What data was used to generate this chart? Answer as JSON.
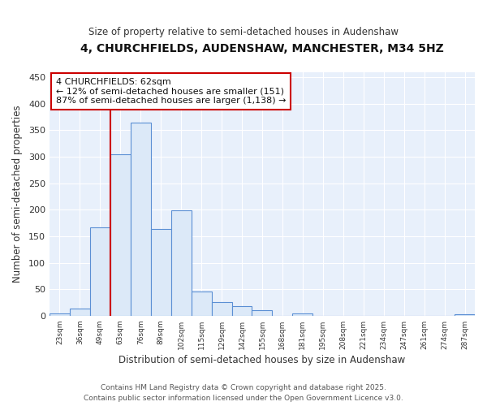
{
  "title": "4, CHURCHFIELDS, AUDENSHAW, MANCHESTER, M34 5HZ",
  "subtitle": "Size of property relative to semi-detached houses in Audenshaw",
  "xlabel": "Distribution of semi-detached houses by size in Audenshaw",
  "ylabel": "Number of semi-detached properties",
  "footer_line1": "Contains HM Land Registry data © Crown copyright and database right 2025.",
  "footer_line2": "Contains public sector information licensed under the Open Government Licence v3.0.",
  "annotation_title": "4 CHURCHFIELDS: 62sqm",
  "annotation_line1": "← 12% of semi-detached houses are smaller (151)",
  "annotation_line2": "87% of semi-detached houses are larger (1,138) →",
  "bar_labels": [
    "23sqm",
    "36sqm",
    "49sqm",
    "63sqm",
    "76sqm",
    "89sqm",
    "102sqm",
    "115sqm",
    "129sqm",
    "142sqm",
    "155sqm",
    "168sqm",
    "181sqm",
    "195sqm",
    "208sqm",
    "221sqm",
    "234sqm",
    "247sqm",
    "261sqm",
    "274sqm",
    "287sqm"
  ],
  "bar_values": [
    5,
    13,
    167,
    305,
    365,
    163,
    199,
    45,
    26,
    18,
    10,
    0,
    4,
    0,
    0,
    0,
    0,
    0,
    0,
    0,
    3
  ],
  "bar_color": "#dce9f8",
  "bar_edge_color": "#5b8fd4",
  "vline_x_idx": 3,
  "vline_color": "#cc0000",
  "bg_color": "#ffffff",
  "plot_bg_color": "#e8f0fb",
  "grid_color": "#ffffff",
  "annotation_box_color": "#ffffff",
  "annotation_box_edge": "#cc0000",
  "ylim": [
    0,
    460
  ],
  "yticks": [
    0,
    50,
    100,
    150,
    200,
    250,
    300,
    350,
    400,
    450
  ]
}
